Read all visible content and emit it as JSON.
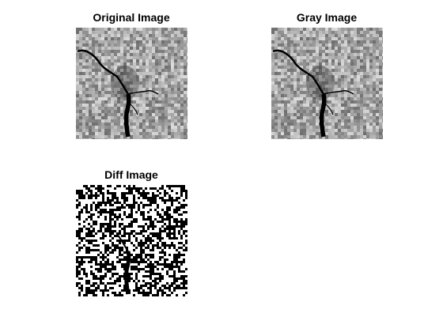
{
  "figure": {
    "subplots": [
      {
        "id": "original",
        "title": "Original Image",
        "style": "grayscale"
      },
      {
        "id": "gray",
        "title": "Gray Image",
        "style": "grayscale"
      },
      {
        "id": "diff",
        "title": "Diff Image",
        "style": "binary-noise"
      }
    ]
  },
  "colors": {
    "background": "#ffffff",
    "title_text": "#000000",
    "river": "#000000"
  }
}
